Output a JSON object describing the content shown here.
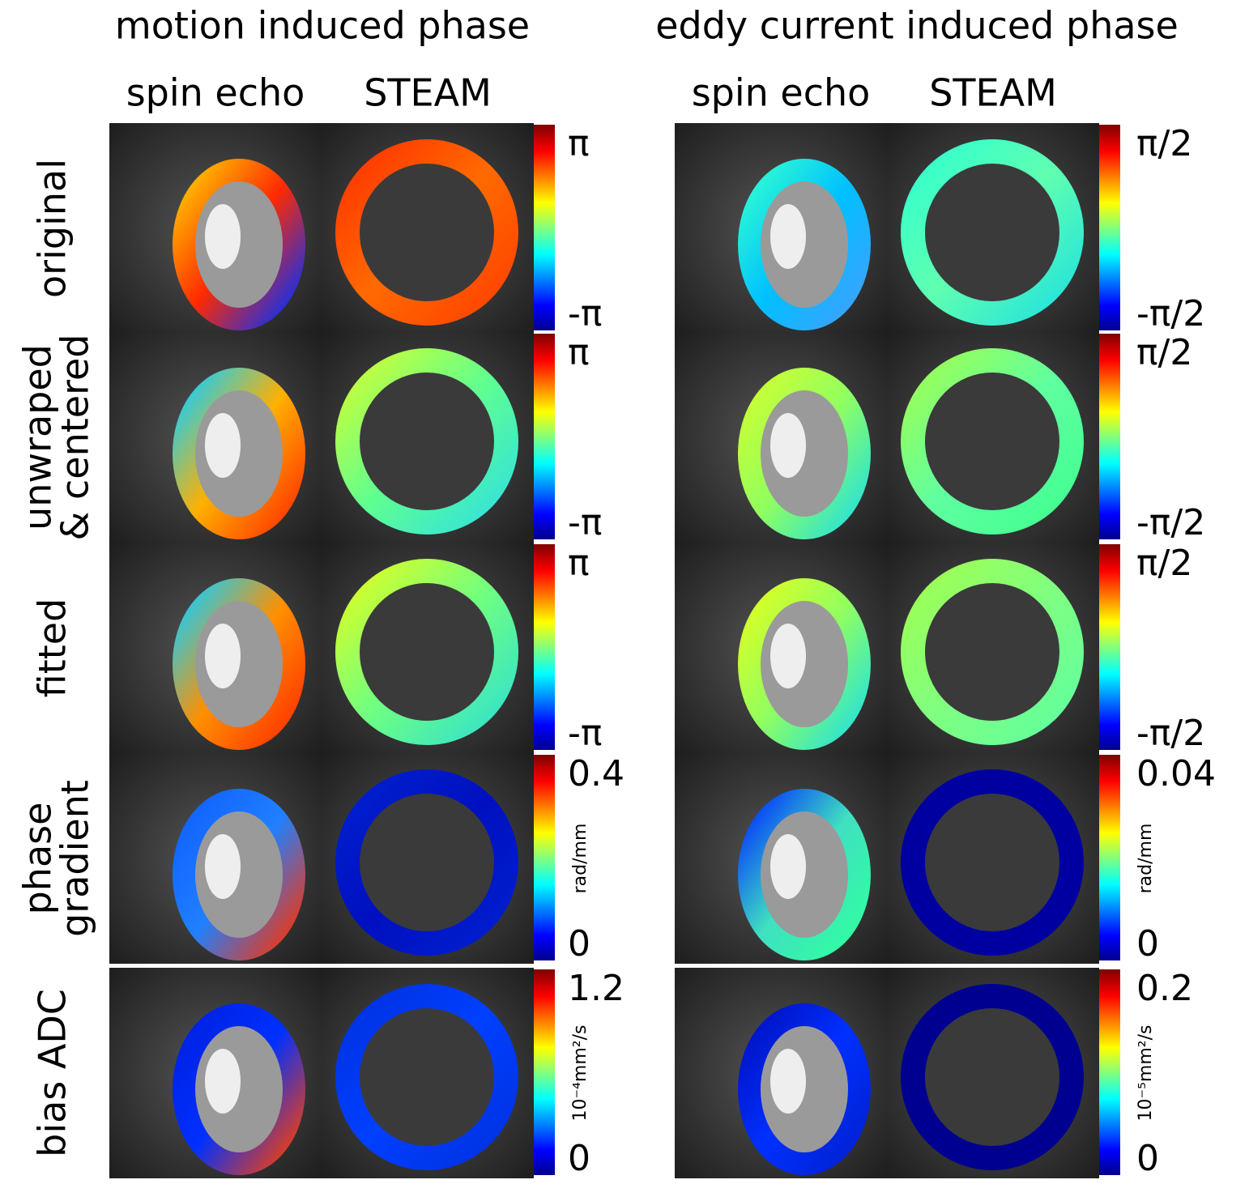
{
  "titles": [
    "motion induced phase",
    "eddy current induced phase"
  ],
  "columns": [
    [
      "spin echo",
      "STEAM"
    ],
    [
      "spin echo",
      "STEAM"
    ]
  ],
  "rows": [
    {
      "label": [
        "original"
      ],
      "colorbars": [
        {
          "max": "π",
          "min": "-π"
        },
        {
          "max": "π/2",
          "min": "-π/2"
        }
      ]
    },
    {
      "label": [
        "unwraped",
        "& centered"
      ],
      "colorbars": [
        {
          "max": "π",
          "min": "-π"
        },
        {
          "max": "π/2",
          "min": "-π/2"
        }
      ]
    },
    {
      "label": [
        "fitted"
      ],
      "colorbars": [
        {
          "max": "π",
          "min": "-π"
        },
        {
          "max": "π/2",
          "min": "-π/2"
        }
      ]
    },
    {
      "label": [
        "phase",
        "gradient"
      ],
      "colorbars": [
        {
          "max": "0.4",
          "min": "0",
          "unit": "rad/mm"
        },
        {
          "max": "0.04",
          "min": "0",
          "unit": "rad/mm"
        }
      ]
    },
    {
      "label": [
        "bias ADC"
      ],
      "colorbars": [
        {
          "max": "1.2",
          "min": "0",
          "unit": "10⁻⁴mm²/s"
        },
        {
          "max": "0.2",
          "min": "0",
          "unit": "10⁻⁵mm²/s"
        }
      ]
    }
  ]
}
